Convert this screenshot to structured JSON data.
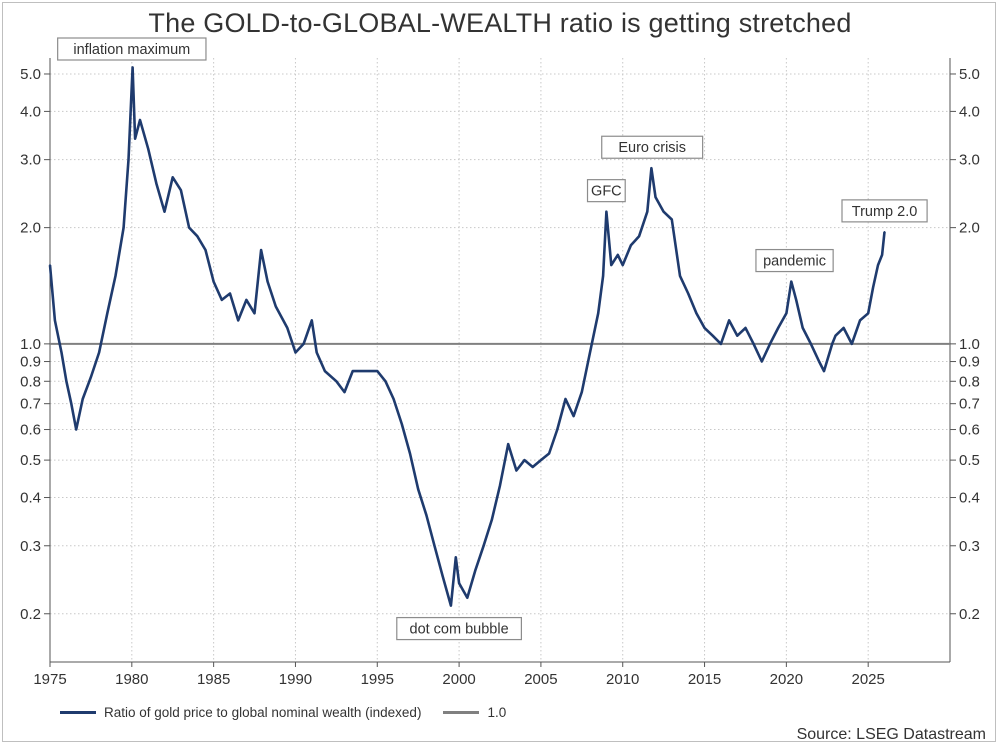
{
  "colors": {
    "series": "#1f3b6e",
    "reference": "#808080",
    "grid": "#c8c8c8",
    "text": "#333333"
  },
  "chart_data": {
    "type": "line",
    "title": "The GOLD-to-GLOBAL-WEALTH ratio is getting stretched",
    "source": "Source: LSEG Datastream",
    "yscale": "log",
    "xlim": [
      1975,
      2030
    ],
    "ylim": [
      0.15,
      5.5
    ],
    "x_ticks": [
      "1975",
      "1980",
      "1985",
      "1990",
      "1995",
      "2000",
      "2005",
      "2010",
      "2015",
      "2020",
      "2025"
    ],
    "y_ticks": [
      {
        "value": 0.2,
        "label": "0.2"
      },
      {
        "value": 0.3,
        "label": "0.3"
      },
      {
        "value": 0.4,
        "label": "0.4"
      },
      {
        "value": 0.5,
        "label": "0.5"
      },
      {
        "value": 0.6,
        "label": "0.6"
      },
      {
        "value": 0.7,
        "label": "0.7"
      },
      {
        "value": 0.8,
        "label": "0.8"
      },
      {
        "value": 0.9,
        "label": "0.9"
      },
      {
        "value": 1.0,
        "label": "1.0"
      },
      {
        "value": 2.0,
        "label": "2.0"
      },
      {
        "value": 3.0,
        "label": "3.0"
      },
      {
        "value": 4.0,
        "label": "4.0"
      },
      {
        "value": 5.0,
        "label": "5.0"
      }
    ],
    "series": [
      {
        "name": "Ratio of gold price to global nominal wealth (indexed)",
        "points": [
          [
            1975.0,
            1.6
          ],
          [
            1975.3,
            1.15
          ],
          [
            1975.7,
            0.95
          ],
          [
            1976.0,
            0.8
          ],
          [
            1976.3,
            0.7
          ],
          [
            1976.6,
            0.6
          ],
          [
            1977.0,
            0.72
          ],
          [
            1977.5,
            0.82
          ],
          [
            1978.0,
            0.95
          ],
          [
            1978.5,
            1.2
          ],
          [
            1979.0,
            1.5
          ],
          [
            1979.5,
            2.0
          ],
          [
            1979.8,
            3.0
          ],
          [
            1980.05,
            5.2
          ],
          [
            1980.2,
            3.4
          ],
          [
            1980.5,
            3.8
          ],
          [
            1981.0,
            3.2
          ],
          [
            1981.5,
            2.6
          ],
          [
            1982.0,
            2.2
          ],
          [
            1982.5,
            2.7
          ],
          [
            1983.0,
            2.5
          ],
          [
            1983.5,
            2.0
          ],
          [
            1984.0,
            1.9
          ],
          [
            1984.5,
            1.75
          ],
          [
            1985.0,
            1.45
          ],
          [
            1985.5,
            1.3
          ],
          [
            1986.0,
            1.35
          ],
          [
            1986.5,
            1.15
          ],
          [
            1987.0,
            1.3
          ],
          [
            1987.5,
            1.2
          ],
          [
            1987.9,
            1.75
          ],
          [
            1988.3,
            1.45
          ],
          [
            1988.8,
            1.25
          ],
          [
            1989.5,
            1.1
          ],
          [
            1990.0,
            0.95
          ],
          [
            1990.5,
            1.0
          ],
          [
            1991.0,
            1.15
          ],
          [
            1991.3,
            0.95
          ],
          [
            1991.8,
            0.85
          ],
          [
            1992.5,
            0.8
          ],
          [
            1993.0,
            0.75
          ],
          [
            1993.5,
            0.85
          ],
          [
            1994.0,
            0.85
          ],
          [
            1994.5,
            0.85
          ],
          [
            1995.0,
            0.85
          ],
          [
            1995.5,
            0.8
          ],
          [
            1996.0,
            0.72
          ],
          [
            1996.5,
            0.62
          ],
          [
            1997.0,
            0.52
          ],
          [
            1997.5,
            0.42
          ],
          [
            1998.0,
            0.36
          ],
          [
            1998.5,
            0.3
          ],
          [
            1999.0,
            0.25
          ],
          [
            1999.5,
            0.21
          ],
          [
            1999.8,
            0.28
          ],
          [
            2000.0,
            0.24
          ],
          [
            2000.5,
            0.22
          ],
          [
            2001.0,
            0.26
          ],
          [
            2001.5,
            0.3
          ],
          [
            2002.0,
            0.35
          ],
          [
            2002.5,
            0.43
          ],
          [
            2003.0,
            0.55
          ],
          [
            2003.5,
            0.47
          ],
          [
            2004.0,
            0.5
          ],
          [
            2004.5,
            0.48
          ],
          [
            2005.0,
            0.5
          ],
          [
            2005.5,
            0.52
          ],
          [
            2006.0,
            0.6
          ],
          [
            2006.5,
            0.72
          ],
          [
            2007.0,
            0.65
          ],
          [
            2007.5,
            0.75
          ],
          [
            2008.0,
            0.95
          ],
          [
            2008.5,
            1.2
          ],
          [
            2008.8,
            1.5
          ],
          [
            2009.0,
            2.2
          ],
          [
            2009.3,
            1.6
          ],
          [
            2009.7,
            1.7
          ],
          [
            2010.0,
            1.6
          ],
          [
            2010.5,
            1.8
          ],
          [
            2011.0,
            1.9
          ],
          [
            2011.5,
            2.2
          ],
          [
            2011.75,
            2.85
          ],
          [
            2012.0,
            2.4
          ],
          [
            2012.5,
            2.2
          ],
          [
            2013.0,
            2.1
          ],
          [
            2013.5,
            1.5
          ],
          [
            2014.0,
            1.35
          ],
          [
            2014.5,
            1.2
          ],
          [
            2015.0,
            1.1
          ],
          [
            2015.5,
            1.05
          ],
          [
            2016.0,
            1.0
          ],
          [
            2016.5,
            1.15
          ],
          [
            2017.0,
            1.05
          ],
          [
            2017.5,
            1.1
          ],
          [
            2018.0,
            1.0
          ],
          [
            2018.5,
            0.9
          ],
          [
            2019.0,
            1.0
          ],
          [
            2019.5,
            1.1
          ],
          [
            2020.0,
            1.2
          ],
          [
            2020.3,
            1.45
          ],
          [
            2020.6,
            1.3
          ],
          [
            2021.0,
            1.1
          ],
          [
            2021.5,
            1.0
          ],
          [
            2022.0,
            0.9
          ],
          [
            2022.3,
            0.85
          ],
          [
            2022.8,
            1.0
          ],
          [
            2023.0,
            1.05
          ],
          [
            2023.5,
            1.1
          ],
          [
            2024.0,
            1.0
          ],
          [
            2024.5,
            1.15
          ],
          [
            2025.0,
            1.2
          ],
          [
            2025.3,
            1.4
          ],
          [
            2025.6,
            1.6
          ],
          [
            2025.85,
            1.7
          ],
          [
            2026.0,
            1.95
          ]
        ]
      }
    ],
    "reference_line": {
      "name": "1.0",
      "value": 1.0
    },
    "annotations": [
      {
        "text": "inflation maximum",
        "x": 1980.0,
        "y": 5.2,
        "position": "above"
      },
      {
        "text": "dot com bubble",
        "x": 2000.0,
        "y": 0.21,
        "position": "below"
      },
      {
        "text": "GFC",
        "x": 2009.0,
        "y": 2.2,
        "position": "above"
      },
      {
        "text": "Euro crisis",
        "x": 2011.8,
        "y": 2.85,
        "position": "above"
      },
      {
        "text": "pandemic",
        "x": 2020.5,
        "y": 1.45,
        "position": "above"
      },
      {
        "text": "Trump 2.0",
        "x": 2026.0,
        "y": 1.95,
        "position": "above"
      }
    ],
    "legend": [
      {
        "label": "Ratio of gold price to global nominal wealth (indexed)",
        "kind": "series"
      },
      {
        "label": "1.0",
        "kind": "reference"
      }
    ]
  }
}
